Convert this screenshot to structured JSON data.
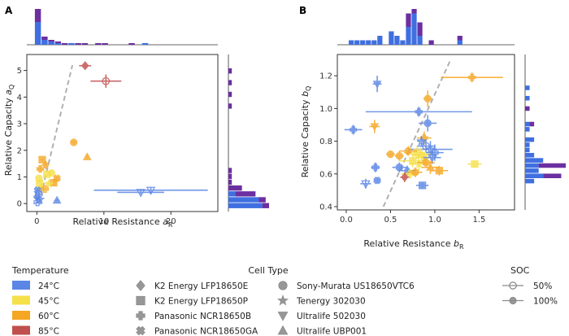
{
  "colors": {
    "t24": "#5b86e5",
    "t45": "#f5e04a",
    "t60": "#f5a623",
    "t85": "#c0504d",
    "hist_blue": "#3f6fe0",
    "hist_purple": "#6b2fa0",
    "fit_line": "#b0b0b0",
    "axis": "#333333"
  },
  "chart_data": [
    {
      "panel": "A",
      "type": "scatter",
      "xlabel": "Relative Resistance a_R",
      "xlabel_main": "Relative Resistance ",
      "xlabel_sym": "a",
      "xlabel_sub": "R",
      "ylabel_main": "Relative Capacity ",
      "ylabel_sym": "a",
      "ylabel_sub": "Q",
      "xlim": [
        -1.5,
        27
      ],
      "ylim": [
        -0.3,
        5.6
      ],
      "xticks": [
        0,
        10,
        20
      ],
      "yticks": [
        0,
        1,
        2,
        3,
        4,
        5
      ],
      "trend_line": [
        [
          0.3,
          0.0
        ],
        [
          5.3,
          5.2
        ]
      ],
      "points": [
        {
          "x": 7.2,
          "y": 5.18,
          "xerr": 0.9,
          "yerr": 0.1,
          "shape": "diamond",
          "temp": "85",
          "soc": "100"
        },
        {
          "x": 10.3,
          "y": 4.6,
          "xerr": 2.3,
          "yerr": 0.25,
          "shape": "circle",
          "temp": "85",
          "soc": "50"
        },
        {
          "x": 5.5,
          "y": 2.3,
          "xerr": 0.4,
          "yerr": 0.05,
          "shape": "circle",
          "temp": "60",
          "soc": "100"
        },
        {
          "x": 7.5,
          "y": 1.75,
          "xerr": 0.3,
          "yerr": 0.08,
          "shape": "triangle",
          "temp": "60",
          "soc": "100"
        },
        {
          "x": 0.8,
          "y": 1.65,
          "xerr": 0.3,
          "yerr": 0.1,
          "shape": "square",
          "temp": "60",
          "soc": "100"
        },
        {
          "x": 1.3,
          "y": 1.45,
          "xerr": 0.3,
          "yerr": 0.1,
          "shape": "diamond",
          "temp": "60",
          "soc": "100"
        },
        {
          "x": 0.5,
          "y": 1.3,
          "xerr": 0.3,
          "yerr": 0.1,
          "shape": "plus",
          "temp": "60",
          "soc": "100"
        },
        {
          "x": 2.2,
          "y": 1.15,
          "xerr": 0.5,
          "yerr": 0.1,
          "shape": "circle",
          "temp": "45",
          "soc": "100"
        },
        {
          "x": 1.5,
          "y": 1.1,
          "xerr": 0.4,
          "yerr": 0.08,
          "shape": "square",
          "temp": "45",
          "soc": "100"
        },
        {
          "x": 3.0,
          "y": 0.95,
          "xerr": 0.5,
          "yerr": 0.1,
          "shape": "cross",
          "temp": "60",
          "soc": "100"
        },
        {
          "x": 2.5,
          "y": 0.78,
          "xerr": 0.5,
          "yerr": 0.1,
          "shape": "square",
          "temp": "60",
          "soc": "100"
        },
        {
          "x": 0.3,
          "y": 0.95,
          "xerr": 0.3,
          "yerr": 0.08,
          "shape": "circle",
          "temp": "45",
          "soc": "100"
        },
        {
          "x": 1.8,
          "y": 0.75,
          "xerr": 0.6,
          "yerr": 0.1,
          "shape": "star",
          "temp": "45",
          "soc": "100"
        },
        {
          "x": 0.4,
          "y": 0.75,
          "xerr": 0.4,
          "yerr": 0.08,
          "shape": "square",
          "temp": "45",
          "soc": "100"
        },
        {
          "x": 0.6,
          "y": 0.6,
          "xerr": 0.3,
          "yerr": 0.08,
          "shape": "triangle",
          "temp": "45",
          "soc": "100"
        },
        {
          "x": 1.2,
          "y": 0.55,
          "xerr": 0.5,
          "yerr": 0.1,
          "shape": "plus",
          "temp": "60",
          "soc": "50"
        },
        {
          "x": 0.1,
          "y": 0.5,
          "xerr": 0.3,
          "yerr": 0.08,
          "shape": "cross",
          "temp": "24",
          "soc": "100"
        },
        {
          "x": 0.3,
          "y": 0.35,
          "xerr": 0.3,
          "yerr": 0.08,
          "shape": "circle",
          "temp": "24",
          "soc": "50"
        },
        {
          "x": 0.0,
          "y": 0.25,
          "xerr": 0.3,
          "yerr": 0.05,
          "shape": "diamond",
          "temp": "24",
          "soc": "100"
        },
        {
          "x": 0.4,
          "y": 0.15,
          "xerr": 0.3,
          "yerr": 0.05,
          "shape": "star",
          "temp": "24",
          "soc": "50"
        },
        {
          "x": 0.1,
          "y": 0.05,
          "xerr": 0.3,
          "yerr": 0.05,
          "shape": "plus",
          "temp": "24",
          "soc": "50"
        },
        {
          "x": 3.0,
          "y": 0.12,
          "xerr": 0.4,
          "yerr": 0.05,
          "shape": "triangle",
          "temp": "24",
          "soc": "100"
        },
        {
          "x": 17.0,
          "y": 0.5,
          "xerr": 8.5,
          "yerr": 0.1,
          "shape": "tri_down",
          "temp": "24",
          "soc": "50"
        },
        {
          "x": 15.5,
          "y": 0.42,
          "xerr": 3.5,
          "yerr": 0.08,
          "shape": "tri_down",
          "temp": "24",
          "soc": "50"
        }
      ],
      "top_hist": {
        "bins_from": -0.3,
        "bin_width": 1.0,
        "blue": [
          14,
          3,
          2,
          1,
          0,
          1,
          0,
          0,
          0,
          0,
          0,
          0,
          0,
          0,
          0,
          0,
          1,
          0,
          0,
          0,
          0
        ],
        "purple": [
          8,
          2,
          1,
          1,
          1,
          0,
          1,
          1,
          0,
          1,
          1,
          0,
          0,
          0,
          1,
          0,
          0,
          0,
          0,
          0,
          0
        ]
      },
      "right_hist": {
        "bins_from": -0.2,
        "bin_width": 0.22,
        "blue": [
          10,
          9,
          2,
          0,
          0,
          0,
          0,
          0,
          0,
          0,
          0,
          0,
          0,
          0,
          0,
          0,
          0,
          0,
          0,
          0,
          0,
          0,
          0,
          0,
          0
        ],
        "purple": [
          2,
          2,
          6,
          4,
          1,
          1,
          1,
          0,
          0,
          0,
          0,
          0,
          0,
          0,
          0,
          0,
          0,
          1,
          0,
          1,
          0,
          1,
          0,
          1,
          0
        ]
      }
    },
    {
      "panel": "B",
      "type": "scatter",
      "xlabel": "Relative Resistance b_R",
      "xlabel_main": "Relative Resistance ",
      "xlabel_sym": "b",
      "xlabel_sub": "R",
      "ylabel_main": "Relative Capacity ",
      "ylabel_sym": "b",
      "ylabel_sub": "Q",
      "xlim": [
        -0.1,
        1.9
      ],
      "ylim": [
        0.38,
        1.33
      ],
      "xticks": [
        0.0,
        0.5,
        1.0,
        1.5
      ],
      "yticks": [
        0.4,
        0.6,
        0.8,
        1.0,
        1.2
      ],
      "trend_line": [
        [
          0.42,
          0.4
        ],
        [
          1.18,
          1.3
        ]
      ],
      "points": [
        {
          "x": 1.42,
          "y": 1.19,
          "xerr": 0.35,
          "yerr": 0.03,
          "shape": "plus",
          "temp": "60",
          "soc": "100"
        },
        {
          "x": 0.35,
          "y": 1.15,
          "xerr": 0.05,
          "yerr": 0.05,
          "shape": "tri_down",
          "temp": "24",
          "soc": "100"
        },
        {
          "x": 0.92,
          "y": 1.06,
          "xerr": 0.05,
          "yerr": 0.05,
          "shape": "circle",
          "temp": "60",
          "soc": "100"
        },
        {
          "x": 0.82,
          "y": 0.98,
          "xerr": 0.6,
          "yerr": 0.03,
          "shape": "plus",
          "temp": "24",
          "soc": "100"
        },
        {
          "x": 0.08,
          "y": 0.87,
          "xerr": 0.1,
          "yerr": 0.03,
          "shape": "plus",
          "temp": "24",
          "soc": "100"
        },
        {
          "x": 0.32,
          "y": 0.89,
          "xerr": 0.06,
          "yerr": 0.04,
          "shape": "tri_down",
          "temp": "60",
          "soc": "100"
        },
        {
          "x": 0.92,
          "y": 0.91,
          "xerr": 0.1,
          "yerr": 0.05,
          "shape": "cross",
          "temp": "24",
          "soc": "100"
        },
        {
          "x": 0.88,
          "y": 0.82,
          "xerr": 0.08,
          "yerr": 0.04,
          "shape": "plus",
          "temp": "60",
          "soc": "100"
        },
        {
          "x": 0.85,
          "y": 0.8,
          "xerr": 0.05,
          "yerr": 0.03,
          "shape": "star",
          "temp": "24",
          "soc": "50"
        },
        {
          "x": 0.9,
          "y": 0.77,
          "xerr": 0.1,
          "yerr": 0.04,
          "shape": "circle",
          "temp": "24",
          "soc": "50"
        },
        {
          "x": 0.95,
          "y": 0.75,
          "xerr": 0.25,
          "yerr": 0.05,
          "shape": "star",
          "temp": "24",
          "soc": "50"
        },
        {
          "x": 0.8,
          "y": 0.73,
          "xerr": 0.15,
          "yerr": 0.04,
          "shape": "square",
          "temp": "45",
          "soc": "100"
        },
        {
          "x": 0.85,
          "y": 0.72,
          "xerr": 0.12,
          "yerr": 0.04,
          "shape": "triangle",
          "temp": "45",
          "soc": "100"
        },
        {
          "x": 0.88,
          "y": 0.7,
          "xerr": 0.1,
          "yerr": 0.03,
          "shape": "circle",
          "temp": "45",
          "soc": "100"
        },
        {
          "x": 0.97,
          "y": 0.7,
          "xerr": 0.1,
          "yerr": 0.04,
          "shape": "tri_down",
          "temp": "24",
          "soc": "50"
        },
        {
          "x": 1.0,
          "y": 0.73,
          "xerr": 0.1,
          "yerr": 0.05,
          "shape": "plus",
          "temp": "24",
          "soc": "50"
        },
        {
          "x": 0.7,
          "y": 0.74,
          "xerr": 0.1,
          "yerr": 0.03,
          "shape": "circle",
          "temp": "60",
          "soc": "100"
        },
        {
          "x": 0.6,
          "y": 0.71,
          "xerr": 0.05,
          "yerr": 0.03,
          "shape": "circle",
          "temp": "60",
          "soc": "100"
        },
        {
          "x": 0.75,
          "y": 0.68,
          "xerr": 0.15,
          "yerr": 0.04,
          "shape": "square",
          "temp": "45",
          "soc": "100"
        },
        {
          "x": 0.82,
          "y": 0.66,
          "xerr": 0.1,
          "yerr": 0.04,
          "shape": "star",
          "temp": "45",
          "soc": "100"
        },
        {
          "x": 0.9,
          "y": 0.67,
          "xerr": 0.1,
          "yerr": 0.03,
          "shape": "cross",
          "temp": "60",
          "soc": "100"
        },
        {
          "x": 0.95,
          "y": 0.64,
          "xerr": 0.1,
          "yerr": 0.04,
          "shape": "triangle",
          "temp": "60",
          "soc": "100"
        },
        {
          "x": 1.05,
          "y": 0.62,
          "xerr": 0.1,
          "yerr": 0.03,
          "shape": "square",
          "temp": "60",
          "soc": "100"
        },
        {
          "x": 1.45,
          "y": 0.66,
          "xerr": 0.08,
          "yerr": 0.02,
          "shape": "square",
          "temp": "45",
          "soc": "100"
        },
        {
          "x": 0.6,
          "y": 0.64,
          "xerr": 0.08,
          "yerr": 0.03,
          "shape": "cross",
          "temp": "24",
          "soc": "100"
        },
        {
          "x": 0.69,
          "y": 0.62,
          "xerr": 0.1,
          "yerr": 0.03,
          "shape": "diamond",
          "temp": "24",
          "soc": "100"
        },
        {
          "x": 0.72,
          "y": 0.6,
          "xerr": 0.1,
          "yerr": 0.03,
          "shape": "plus",
          "temp": "45",
          "soc": "100"
        },
        {
          "x": 0.66,
          "y": 0.58,
          "xerr": 0.05,
          "yerr": 0.03,
          "shape": "diamond",
          "temp": "85",
          "soc": "100"
        },
        {
          "x": 0.78,
          "y": 0.61,
          "xerr": 0.08,
          "yerr": 0.03,
          "shape": "circle",
          "temp": "60",
          "soc": "100"
        },
        {
          "x": 0.5,
          "y": 0.72,
          "xerr": 0.05,
          "yerr": 0.02,
          "shape": "circle",
          "temp": "60",
          "soc": "100"
        },
        {
          "x": 0.33,
          "y": 0.64,
          "xerr": 0.05,
          "yerr": 0.03,
          "shape": "plus",
          "temp": "24",
          "soc": "100"
        },
        {
          "x": 0.22,
          "y": 0.54,
          "xerr": 0.06,
          "yerr": 0.03,
          "shape": "tri_down",
          "temp": "24",
          "soc": "50"
        },
        {
          "x": 0.35,
          "y": 0.56,
          "xerr": 0.04,
          "yerr": 0.02,
          "shape": "cross",
          "temp": "24",
          "soc": "100"
        },
        {
          "x": 0.86,
          "y": 0.53,
          "xerr": 0.07,
          "yerr": 0.02,
          "shape": "square",
          "temp": "24",
          "soc": "100"
        }
      ],
      "top_hist": {
        "bins_from": -0.1,
        "bin_width": 0.0645,
        "blue": [
          0,
          0,
          1,
          1,
          1,
          1,
          1,
          2,
          0,
          3,
          2,
          1,
          4,
          7,
          2,
          0,
          0,
          0,
          0,
          0,
          0,
          1,
          0,
          0,
          0,
          0,
          0,
          0,
          0,
          0,
          0
        ],
        "purple": [
          0,
          0,
          0,
          0,
          0,
          0,
          0,
          0,
          0,
          0,
          0,
          0,
          3,
          1,
          3,
          0,
          1,
          0,
          0,
          0,
          0,
          1,
          0,
          0,
          0,
          0,
          0,
          0,
          0,
          0,
          0
        ]
      },
      "right_hist": {
        "bins_from": 0.38,
        "bin_width": 0.03167,
        "blue": [
          0,
          0,
          0,
          0,
          0,
          2,
          4,
          3,
          3,
          4,
          2,
          1,
          1,
          2,
          0,
          1,
          1,
          0,
          0,
          0,
          0,
          1,
          0,
          1,
          0,
          0,
          0,
          0,
          0,
          0
        ],
        "purple": [
          0,
          0,
          0,
          0,
          0,
          0,
          4,
          0,
          6,
          0,
          0,
          0,
          0,
          0,
          0,
          0,
          1,
          0,
          0,
          1,
          0,
          0,
          0,
          0,
          0,
          0,
          0,
          0,
          0,
          0
        ]
      }
    }
  ],
  "legend": {
    "temperature": {
      "title": "Temperature",
      "items": [
        {
          "label": "24°C",
          "key": "t24"
        },
        {
          "label": "45°C",
          "key": "t45"
        },
        {
          "label": "60°C",
          "key": "t60"
        },
        {
          "label": "85°C",
          "key": "t85"
        }
      ]
    },
    "cell_type": {
      "title": "Cell Type",
      "items": [
        {
          "label": "K2 Energy LFP18650E",
          "shape": "diamond"
        },
        {
          "label": "K2 Energy LFP18650P",
          "shape": "square"
        },
        {
          "label": "Panasonic NCR18650B",
          "shape": "plus"
        },
        {
          "label": "Panasonic NCR18650GA",
          "shape": "cross"
        },
        {
          "label": "Sony-Murata US18650VTC6",
          "shape": "circle"
        },
        {
          "label": "Tenergy 302030",
          "shape": "star"
        },
        {
          "label": "Ultralife 502030",
          "shape": "tri_down"
        },
        {
          "label": "Ultralife UBP001",
          "shape": "triangle"
        }
      ]
    },
    "soc": {
      "title": "SOC",
      "items": [
        {
          "label": "50%",
          "soc": "50"
        },
        {
          "label": "100%",
          "soc": "100"
        }
      ]
    }
  }
}
